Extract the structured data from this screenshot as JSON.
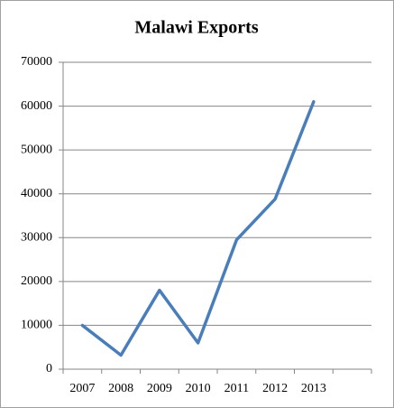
{
  "chart_data": {
    "type": "line",
    "title": "Malawi Exports",
    "categories": [
      "2007",
      "2008",
      "2009",
      "2010",
      "2011",
      "2012",
      "2013",
      null
    ],
    "series": [
      {
        "name": "Malawi Exports",
        "color": "#4a7ebb",
        "values": [
          10000,
          3200,
          18000,
          6000,
          29500,
          38800,
          61000,
          null
        ]
      }
    ],
    "ylim": [
      0,
      70000
    ],
    "yticks": [
      0,
      10000,
      20000,
      30000,
      40000,
      50000,
      60000,
      70000
    ],
    "grid": true
  }
}
